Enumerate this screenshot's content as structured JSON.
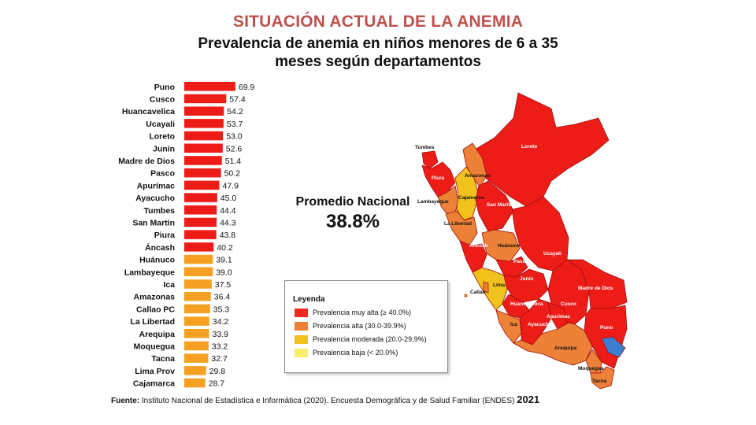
{
  "header": {
    "supertitle": "SITUACIÓN ACTUAL DE LA ANEMIA",
    "title_line1": "Prevalencia de anemia en niños menores de 6 a 35",
    "title_line2": "meses según departamentos"
  },
  "chart_data": {
    "type": "bar",
    "orientation": "horizontal",
    "title": "Prevalencia de anemia en niños menores de 6 a 35 meses según departamentos",
    "categories": [
      "Puno",
      "Cusco",
      "Huancavelica",
      "Ucayali",
      "Loreto",
      "Junín",
      "Madre de Dios",
      "Pasco",
      "Apurímac",
      "Ayacucho",
      "Tumbes",
      "San Martín",
      "Piura",
      "Áncash",
      "Huánuco",
      "Lambayeque",
      "Ica",
      "Amazonas",
      "Callao PC",
      "La Libertad",
      "Arequipa",
      "Moquegua",
      "Tacna",
      "Lima Prov",
      "Cajamarca"
    ],
    "values": [
      69.9,
      57.4,
      54.2,
      53.7,
      53.0,
      52.6,
      51.4,
      50.2,
      47.9,
      45.0,
      44.4,
      44.3,
      43.8,
      40.2,
      39.1,
      39.0,
      37.5,
      36.4,
      35.3,
      34.2,
      33.9,
      33.2,
      32.7,
      29.8,
      28.7
    ],
    "value_labels": [
      "69.9",
      "57.4",
      "54.2",
      "53.7",
      "53.0",
      "52.6",
      "51.4",
      "50.2",
      "47.9",
      "45.0",
      "44.4",
      "44.3",
      "43.8",
      "40.2",
      "39.1",
      "39.0",
      "37.5",
      "36.4",
      "35.3",
      "34.2",
      "33.9",
      "33.2",
      "32.7",
      "29.8",
      "28.7"
    ],
    "xlim": [
      0,
      70
    ],
    "grid": false,
    "colors": {
      "muy_alta": "#ee1c17",
      "alta": "#f5a023",
      "moderada": "#f9b21c"
    }
  },
  "average": {
    "label": "Promedio Nacional",
    "value": "38.8%"
  },
  "legend": {
    "title": "Leyenda",
    "items": [
      {
        "label": "Prevalencia muy alta (≥ 40.0%)",
        "color": "#ee2a1f"
      },
      {
        "label": "Prevalencia alta (30.0-39.9%)",
        "color": "#ec8137"
      },
      {
        "label": "Prevalencia moderada (20.0-29.9%)",
        "color": "#f2c21c"
      },
      {
        "label": "Prevalencia baja (< 20.0%)",
        "color": "#f7ee6b"
      }
    ]
  },
  "map": {
    "labels": [
      "Tumbes",
      "Piura",
      "Amazonas",
      "Lambayeque",
      "Cajamarca",
      "San Martín",
      "Loreto",
      "La Libertad",
      "Áncash",
      "Huánuco",
      "Pasco",
      "Ucayali",
      "Lima",
      "Callao",
      "Junín",
      "Huancavelica",
      "Madre de Dios",
      "Cusco",
      "Apurímac",
      "Ica",
      "Ayacucho",
      "Puno",
      "Arequipa",
      "Moquegua",
      "Tacna"
    ],
    "colors": {
      "muy_alta": "#ee1c17",
      "alta": "#ec8137",
      "moderada": "#f2c21c",
      "baja": "#f7ee6b",
      "lake": "#3a7ed0",
      "border": "#a01010"
    }
  },
  "footer": {
    "source_label": "Fuente:",
    "source_text": " Instituto Nacional de Estadística e Informática (2020). Encuesta Demográfica y de Salud Familiar (ENDES)",
    "year": "2021"
  }
}
